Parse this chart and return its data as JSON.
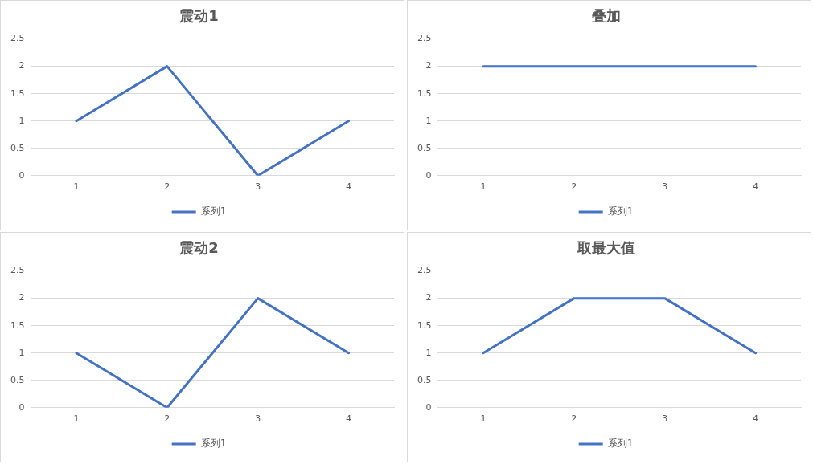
{
  "chart_data": [
    {
      "type": "line",
      "title": "震动1",
      "categories": [
        "1",
        "2",
        "3",
        "4"
      ],
      "series": [
        {
          "name": "系列1",
          "color": "#4472c4",
          "values": [
            1,
            2,
            0,
            1
          ]
        }
      ],
      "ylim": [
        0,
        2.5
      ],
      "yticks": [
        0,
        0.5,
        1,
        1.5,
        2,
        2.5
      ],
      "grid": "y",
      "legend": "bottom"
    },
    {
      "type": "line",
      "title": "叠加",
      "categories": [
        "1",
        "2",
        "3",
        "4"
      ],
      "series": [
        {
          "name": "系列1",
          "color": "#4472c4",
          "values": [
            2,
            2,
            2,
            2
          ]
        }
      ],
      "ylim": [
        0,
        2.5
      ],
      "yticks": [
        0,
        0.5,
        1,
        1.5,
        2,
        2.5
      ],
      "grid": "y",
      "legend": "bottom"
    },
    {
      "type": "line",
      "title": "震动2",
      "categories": [
        "1",
        "2",
        "3",
        "4"
      ],
      "series": [
        {
          "name": "系列1",
          "color": "#4472c4",
          "values": [
            1,
            0,
            2,
            1
          ]
        }
      ],
      "ylim": [
        0,
        2.5
      ],
      "yticks": [
        0,
        0.5,
        1,
        1.5,
        2,
        2.5
      ],
      "grid": "y",
      "legend": "bottom"
    },
    {
      "type": "line",
      "title": "取最大值",
      "categories": [
        "1",
        "2",
        "3",
        "4"
      ],
      "series": [
        {
          "name": "系列1",
          "color": "#4472c4",
          "values": [
            1,
            2,
            2,
            1
          ]
        }
      ],
      "ylim": [
        0,
        2.5
      ],
      "yticks": [
        0,
        0.5,
        1,
        1.5,
        2,
        2.5
      ],
      "grid": "y",
      "legend": "bottom"
    }
  ]
}
